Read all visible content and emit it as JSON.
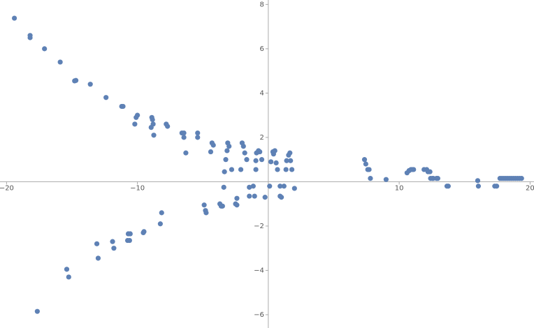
{
  "chart_data": {
    "type": "scatter",
    "xlim": [
      -20.5,
      20.3
    ],
    "ylim": [
      -6.6,
      8.2
    ],
    "xticks": [
      {
        "value": -20,
        "label": "−20"
      },
      {
        "value": -10,
        "label": "−10"
      },
      10,
      20
    ],
    "yticks": [
      {
        "value": -6,
        "label": "−6"
      },
      {
        "value": -4,
        "label": "−4"
      },
      {
        "value": -2,
        "label": "−2"
      },
      2,
      4,
      6,
      8
    ],
    "series": [
      {
        "color": "#5e81b5",
        "x": [
          -19.4,
          -18.2,
          -18.2,
          -17.1,
          -15.9,
          -14.8,
          -14.7,
          -13.6,
          -12.4,
          -11.2,
          -11.1,
          -10.1,
          -10.0,
          -10.2,
          -8.9,
          -8.85,
          -8.95,
          -8.8,
          -8.75,
          -7.8,
          -7.7,
          -6.6,
          -6.45,
          -6.45,
          -6.3,
          -5.4,
          -5.4,
          -4.3,
          -4.2,
          -4.4,
          -3.1,
          -3.0,
          -3.15,
          -3.25,
          -3.35,
          -2.8,
          -2.0,
          -1.9,
          -1.8,
          -1.65,
          -2.1,
          -0.95,
          -0.9,
          -0.75,
          -0.65,
          -0.95,
          -0.5,
          0.35,
          0.4,
          0.5,
          0.2,
          0.6,
          0.7,
          1.4,
          1.7,
          1.55,
          1.65,
          1.35,
          1.8,
          0.1,
          -0.25,
          0.9,
          1.2,
          0.9,
          1.0,
          2.0,
          -1.15,
          -1.45,
          -1.45,
          -1.05,
          -2.4,
          -2.5,
          -2.4,
          -3.4,
          -3.6,
          -3.7,
          -3.5,
          -4.9,
          -4.75,
          -4.8,
          -8.15,
          -8.25,
          -9.5,
          -9.55,
          -10.7,
          -10.55,
          -10.75,
          -10.6,
          -11.9,
          -11.8,
          -13.1,
          -13.0,
          -15.4,
          -15.25,
          -17.65,
          7.35,
          7.45,
          7.6,
          7.7,
          7.8,
          9.0,
          10.6,
          10.75,
          10.9,
          11.0,
          11.1,
          11.9,
          12.1,
          12.2,
          12.35,
          12.4,
          12.55,
          12.6,
          12.85,
          12.95,
          13.65,
          13.75,
          16.0,
          16.05,
          17.3,
          17.45,
          17.7,
          17.85,
          18.0,
          18.15,
          18.3,
          18.45,
          18.6,
          18.75,
          18.9,
          19.05,
          19.2,
          19.35
        ],
        "values": [
          7.38,
          6.6,
          6.5,
          6.0,
          5.4,
          4.55,
          4.57,
          4.4,
          3.8,
          3.4,
          3.4,
          2.9,
          3.0,
          2.6,
          2.9,
          2.8,
          2.45,
          2.6,
          2.1,
          2.6,
          2.5,
          2.2,
          2.2,
          2.0,
          1.3,
          2.2,
          2.0,
          1.75,
          1.65,
          1.35,
          1.75,
          1.6,
          1.4,
          1.0,
          0.45,
          0.55,
          1.75,
          1.6,
          1.3,
          1.0,
          0.55,
          0.95,
          1.3,
          1.4,
          1.35,
          0.55,
          1.0,
          1.35,
          1.25,
          1.4,
          0.9,
          0.85,
          0.55,
          0.95,
          0.95,
          1.2,
          1.3,
          0.55,
          0.55,
          -0.2,
          -0.7,
          -0.2,
          -0.2,
          -0.65,
          -0.7,
          -0.3,
          -0.2,
          -0.25,
          -0.65,
          -0.65,
          -0.75,
          -1.0,
          -1.05,
          -0.25,
          -1.1,
          -1.0,
          -1.1,
          -1.05,
          -1.4,
          -1.3,
          -1.4,
          -1.9,
          -2.25,
          -2.3,
          -2.35,
          -2.35,
          -2.65,
          -2.65,
          -2.7,
          -3.0,
          -2.8,
          -3.45,
          -3.95,
          -4.3,
          -5.85,
          1.0,
          0.8,
          0.55,
          0.55,
          0.15,
          0.1,
          0.4,
          0.5,
          0.55,
          0.55,
          0.55,
          0.55,
          0.55,
          0.45,
          0.45,
          0.15,
          0.15,
          0.15,
          0.15,
          0.15,
          -0.2,
          -0.2,
          0.05,
          -0.2,
          -0.2,
          -0.2,
          0.15,
          0.15,
          0.15,
          0.15,
          0.15,
          0.15,
          0.15,
          0.15,
          0.15,
          0.15,
          0.15,
          0.15
        ]
      }
    ]
  }
}
